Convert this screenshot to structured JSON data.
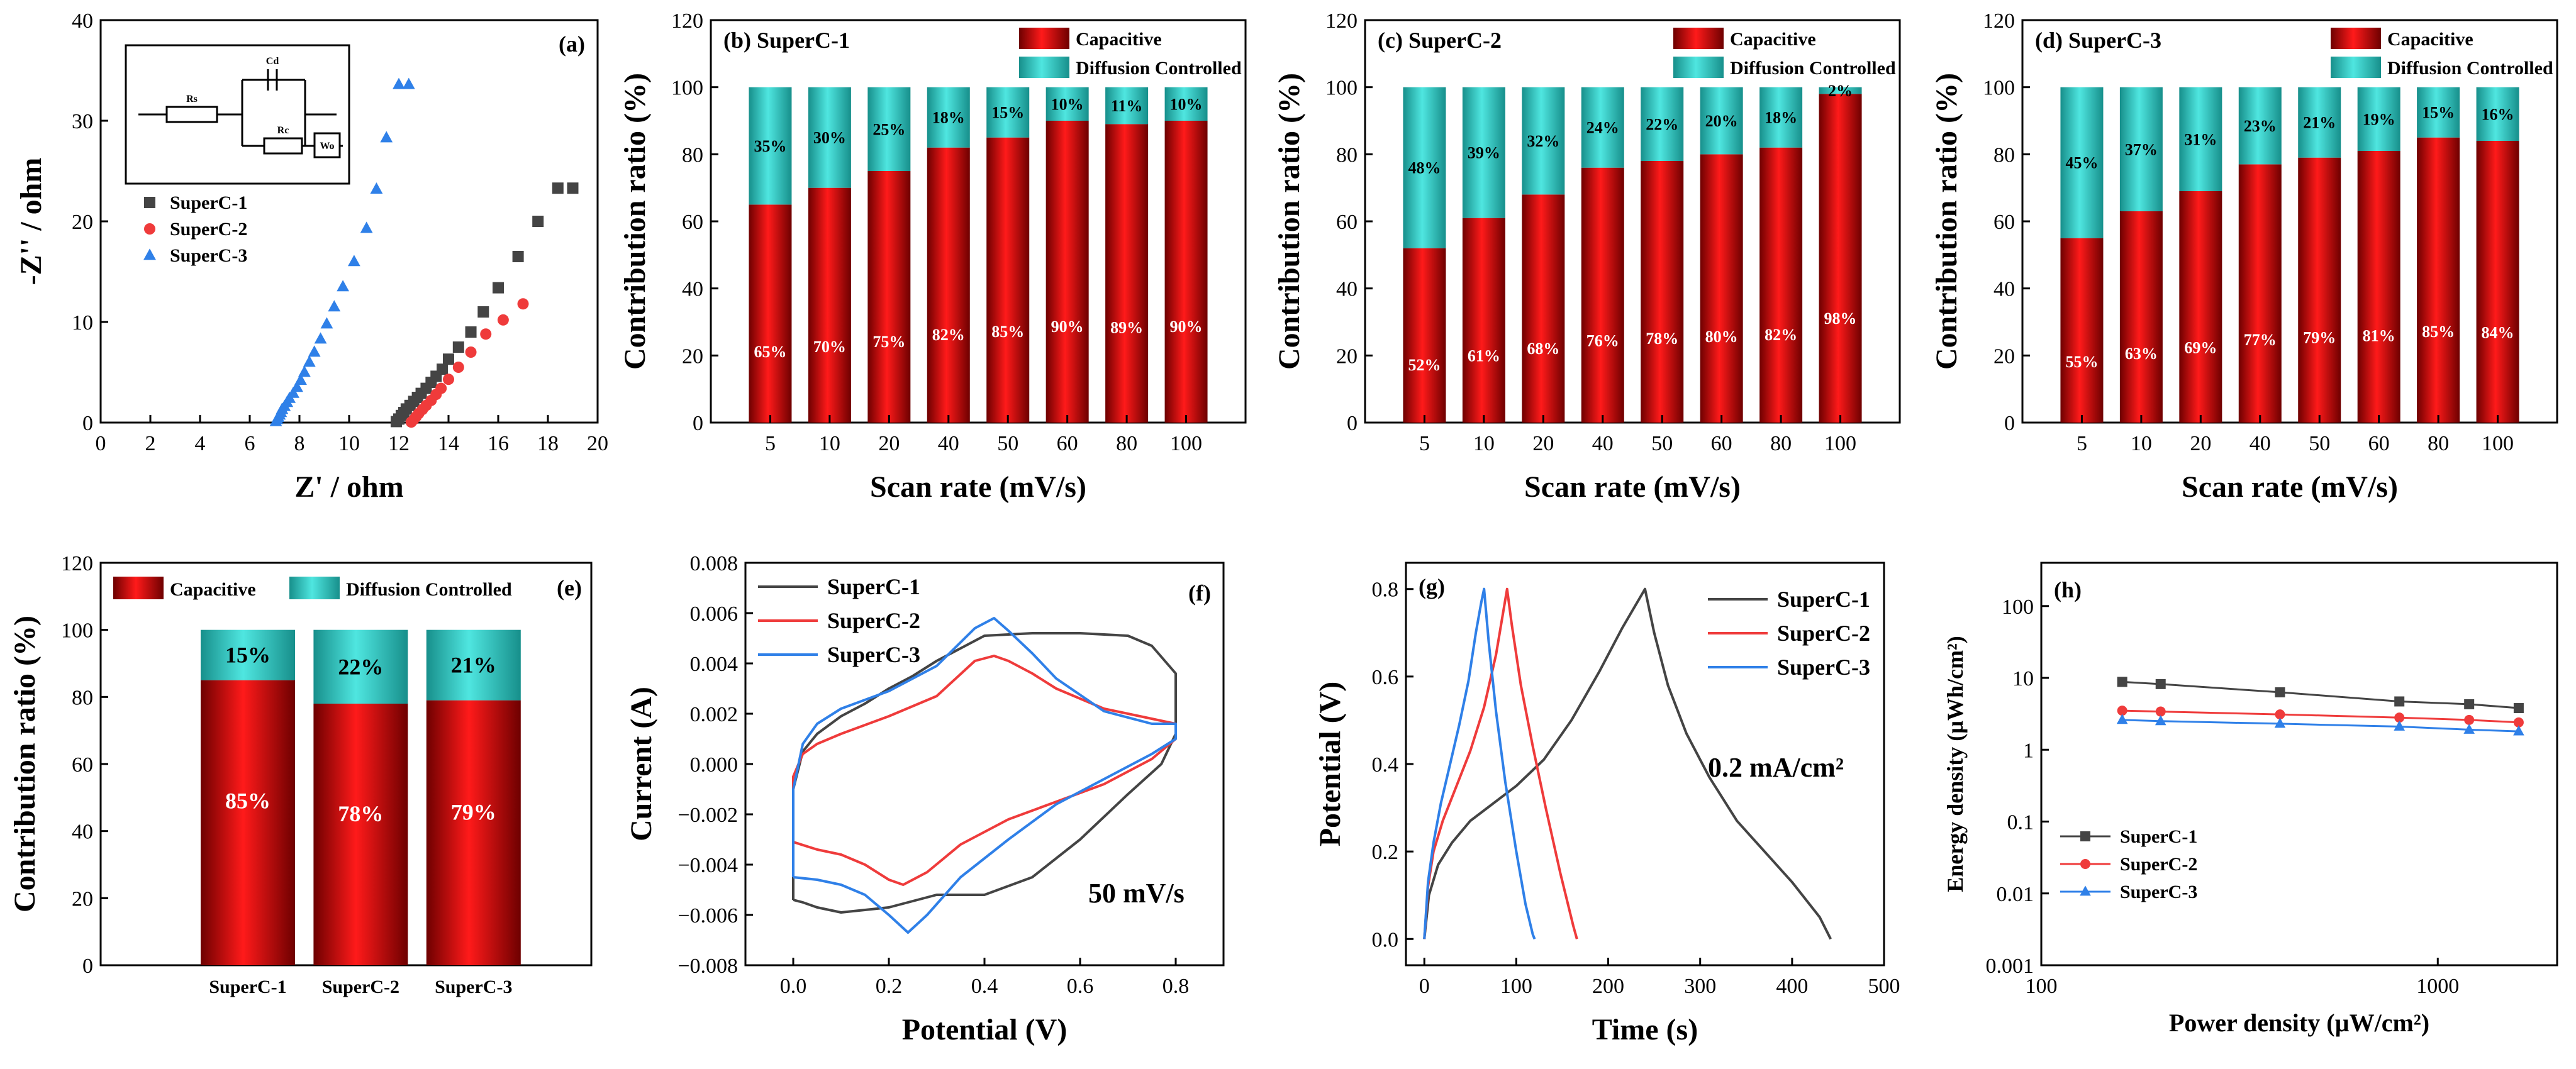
{
  "colors": {
    "capacitive": "#e31a1c",
    "capacitive_dark": "#8b0000",
    "diffusion": "#2fd4cf",
    "diffusion_dark": "#1a9e9a",
    "superc1": "#444444",
    "superc2": "#ef3b3b",
    "superc3": "#2f80e8"
  },
  "chart_data": [
    {
      "id": "a",
      "type": "scatter",
      "panel_label": "(a)",
      "xlabel": "Z' / ohm",
      "ylabel": "-Z'' / ohm",
      "xlim": [
        0,
        20
      ],
      "ylim": [
        0,
        40
      ],
      "xticks": [
        "0",
        "2",
        "4",
        "6",
        "8",
        "10",
        "12",
        "14",
        "16",
        "18",
        "20"
      ],
      "yticks": [
        "0",
        "10",
        "20",
        "30",
        "40"
      ],
      "inset_labels": [
        "Rs",
        "Cd",
        "Rc",
        "Wo"
      ],
      "series": [
        {
          "name": "SuperC-1",
          "marker": "square",
          "color_key": "superc1",
          "x": [
            11.9,
            12.0,
            12.1,
            12.2,
            12.3,
            12.45,
            12.6,
            12.75,
            12.9,
            13.1,
            13.3,
            13.5,
            13.75,
            14.0,
            14.4,
            14.9,
            15.4,
            16.0,
            16.8,
            17.6,
            18.4,
            19.0
          ],
          "y": [
            0.1,
            0.35,
            0.7,
            1.0,
            1.35,
            1.7,
            2.1,
            2.5,
            2.9,
            3.4,
            4.0,
            4.6,
            5.3,
            6.3,
            7.5,
            9.0,
            11.0,
            13.4,
            16.5,
            20.0,
            23.3,
            23.3
          ]
        },
        {
          "name": "SuperC-2",
          "marker": "circle",
          "color_key": "superc2",
          "x": [
            12.5,
            12.6,
            12.7,
            12.8,
            12.95,
            13.1,
            13.3,
            13.5,
            13.7,
            14.0,
            14.4,
            14.9,
            15.5,
            16.2,
            17.0
          ],
          "y": [
            0.05,
            0.3,
            0.6,
            0.9,
            1.3,
            1.7,
            2.2,
            2.8,
            3.4,
            4.3,
            5.5,
            7.0,
            8.8,
            10.2,
            11.8
          ]
        },
        {
          "name": "SuperC-3",
          "marker": "triangle",
          "color_key": "superc3",
          "x": [
            7.05,
            7.1,
            7.15,
            7.2,
            7.25,
            7.3,
            7.4,
            7.5,
            7.6,
            7.75,
            7.9,
            8.05,
            8.2,
            8.4,
            8.6,
            8.85,
            9.1,
            9.4,
            9.75,
            10.2,
            10.7,
            11.1,
            11.5,
            12.0,
            12.4
          ],
          "y": [
            0.1,
            0.3,
            0.5,
            0.75,
            1.0,
            1.3,
            1.6,
            2.0,
            2.4,
            2.9,
            3.5,
            4.2,
            5.0,
            6.0,
            7.0,
            8.3,
            9.8,
            11.5,
            13.5,
            16.0,
            19.3,
            23.2,
            28.3,
            33.6,
            33.6
          ]
        }
      ]
    },
    {
      "id": "b",
      "type": "bar",
      "stacked": true,
      "panel_label": "(b) SuperC-1",
      "xlabel": "Scan rate (mV/s)",
      "ylabel": "Contribution ratio (%)",
      "ylim": [
        0,
        120
      ],
      "yticks": [
        "0",
        "20",
        "40",
        "60",
        "80",
        "100",
        "120"
      ],
      "legend": [
        "Capacitive",
        "Diffusion Controlled"
      ],
      "categories": [
        "5",
        "10",
        "20",
        "40",
        "50",
        "60",
        "80",
        "100"
      ],
      "series": [
        {
          "name": "Capacitive",
          "values": [
            65,
            70,
            75,
            82,
            85,
            90,
            89,
            90
          ],
          "labels": [
            "65%",
            "70%",
            "75%",
            "82%",
            "85%",
            "90%",
            "89%",
            "90%"
          ]
        },
        {
          "name": "Diffusion Controlled",
          "values": [
            35,
            30,
            25,
            18,
            15,
            10,
            11,
            10
          ],
          "labels": [
            "35%",
            "30%",
            "25%",
            "18%",
            "15%",
            "10%",
            "11%",
            "10%"
          ]
        }
      ]
    },
    {
      "id": "c",
      "type": "bar",
      "stacked": true,
      "panel_label": "(c) SuperC-2",
      "xlabel": "Scan rate (mV/s)",
      "ylabel": "Contribution ratio (%)",
      "ylim": [
        0,
        120
      ],
      "yticks": [
        "0",
        "20",
        "40",
        "60",
        "80",
        "100",
        "120"
      ],
      "legend": [
        "Capacitive",
        "Diffusion Controlled"
      ],
      "categories": [
        "5",
        "10",
        "20",
        "40",
        "50",
        "60",
        "80",
        "100"
      ],
      "series": [
        {
          "name": "Capacitive",
          "values": [
            52,
            61,
            68,
            76,
            78,
            80,
            82,
            98
          ],
          "labels": [
            "52%",
            "61%",
            "68%",
            "76%",
            "78%",
            "80%",
            "82%",
            "98%"
          ]
        },
        {
          "name": "Diffusion Controlled",
          "values": [
            48,
            39,
            32,
            24,
            22,
            20,
            18,
            2
          ],
          "labels": [
            "48%",
            "39%",
            "32%",
            "24%",
            "22%",
            "20%",
            "18%",
            "2%"
          ]
        }
      ]
    },
    {
      "id": "d",
      "type": "bar",
      "stacked": true,
      "panel_label": "(d) SuperC-3",
      "xlabel": "Scan rate (mV/s)",
      "ylabel": "Contribution ratio (%)",
      "ylim": [
        0,
        120
      ],
      "yticks": [
        "0",
        "20",
        "40",
        "60",
        "80",
        "100",
        "120"
      ],
      "legend": [
        "Capacitive",
        "Diffusion Controlled"
      ],
      "categories": [
        "5",
        "10",
        "20",
        "40",
        "50",
        "60",
        "80",
        "100"
      ],
      "series": [
        {
          "name": "Capacitive",
          "values": [
            55,
            63,
            69,
            77,
            79,
            81,
            85,
            84
          ],
          "labels": [
            "55%",
            "63%",
            "69%",
            "77%",
            "79%",
            "81%",
            "85%",
            "84%"
          ]
        },
        {
          "name": "Diffusion Controlled",
          "values": [
            45,
            37,
            31,
            23,
            21,
            19,
            15,
            16
          ],
          "labels": [
            "45%",
            "37%",
            "31%",
            "23%",
            "21%",
            "19%",
            "15%",
            "16%"
          ]
        }
      ]
    },
    {
      "id": "e",
      "type": "bar",
      "stacked": true,
      "panel_label": "(e)",
      "xlabel": "",
      "ylabel": "Contribution ratio (%)",
      "ylim": [
        0,
        120
      ],
      "yticks": [
        "0",
        "20",
        "40",
        "60",
        "80",
        "100",
        "120"
      ],
      "legend": [
        "Capacitive",
        "Diffusion Controlled"
      ],
      "categories": [
        "SuperC-1",
        "SuperC-2",
        "SuperC-3"
      ],
      "series": [
        {
          "name": "Capacitive",
          "values": [
            85,
            78,
            79
          ],
          "labels": [
            "85%",
            "78%",
            "79%"
          ]
        },
        {
          "name": "Diffusion Controlled",
          "values": [
            15,
            22,
            21
          ],
          "labels": [
            "15%",
            "22%",
            "21%"
          ]
        }
      ]
    },
    {
      "id": "f",
      "type": "line",
      "panel_label": "(f)",
      "xlabel": "Potential (V)",
      "ylabel": "Current (A)",
      "xlim": [
        -0.1,
        0.9
      ],
      "ylim": [
        -0.008,
        0.008
      ],
      "xticks": [
        "0.0",
        "0.2",
        "0.4",
        "0.6",
        "0.8"
      ],
      "yticks": [
        "-0.008",
        "-0.006",
        "-0.004",
        "-0.002",
        "0.000",
        "0.002",
        "0.004",
        "0.006",
        "0.008"
      ],
      "annotation": "50 mV/s",
      "series": [
        {
          "name": "SuperC-1",
          "color_key": "superc1",
          "x": [
            0.0,
            0.02,
            0.05,
            0.1,
            0.2,
            0.3,
            0.4,
            0.5,
            0.6,
            0.7,
            0.77,
            0.8,
            0.8,
            0.75,
            0.7,
            0.6,
            0.5,
            0.4,
            0.3,
            0.25,
            0.2,
            0.15,
            0.1,
            0.05,
            0.02,
            0.0,
            0.0
          ],
          "y": [
            -0.0054,
            -0.0055,
            -0.0057,
            -0.0059,
            -0.0057,
            -0.0052,
            -0.0052,
            -0.0045,
            -0.003,
            -0.0012,
            0.0,
            0.0012,
            0.0036,
            0.0047,
            0.0051,
            0.0052,
            0.0052,
            0.0051,
            0.0041,
            0.0035,
            0.003,
            0.0024,
            0.0019,
            0.0012,
            0.0005,
            -0.001,
            -0.0054
          ]
        },
        {
          "name": "SuperC-2",
          "color_key": "superc2",
          "x": [
            0.0,
            0.05,
            0.1,
            0.15,
            0.2,
            0.23,
            0.28,
            0.35,
            0.45,
            0.55,
            0.65,
            0.75,
            0.8,
            0.8,
            0.75,
            0.65,
            0.55,
            0.5,
            0.45,
            0.42,
            0.38,
            0.3,
            0.2,
            0.1,
            0.05,
            0.02,
            0.0,
            0.0
          ],
          "y": [
            -0.0031,
            -0.0034,
            -0.0036,
            -0.004,
            -0.0046,
            -0.0048,
            -0.0043,
            -0.0032,
            -0.0022,
            -0.0015,
            -0.0008,
            0.0002,
            0.001,
            0.0016,
            0.0018,
            0.0022,
            0.003,
            0.0036,
            0.0041,
            0.0043,
            0.0041,
            0.0027,
            0.0019,
            0.0012,
            0.0008,
            0.0004,
            -0.0005,
            -0.0031
          ]
        },
        {
          "name": "SuperC-3",
          "color_key": "superc3",
          "x": [
            0.0,
            0.05,
            0.1,
            0.15,
            0.2,
            0.24,
            0.28,
            0.35,
            0.45,
            0.55,
            0.65,
            0.75,
            0.8,
            0.8,
            0.75,
            0.65,
            0.55,
            0.5,
            0.45,
            0.42,
            0.38,
            0.3,
            0.2,
            0.1,
            0.05,
            0.02,
            0.0,
            0.0
          ],
          "y": [
            -0.0045,
            -0.0046,
            -0.0048,
            -0.0052,
            -0.006,
            -0.0067,
            -0.006,
            -0.0045,
            -0.003,
            -0.0016,
            -0.0006,
            0.0004,
            0.001,
            0.0016,
            0.0016,
            0.0021,
            0.0034,
            0.0044,
            0.0053,
            0.0058,
            0.0054,
            0.0039,
            0.0029,
            0.0022,
            0.0016,
            0.0008,
            -0.001,
            -0.0045
          ]
        }
      ]
    },
    {
      "id": "g",
      "type": "line",
      "panel_label": "(g)",
      "xlabel": "Time (s)",
      "ylabel": "Potential (V)",
      "xlim": [
        -20,
        500
      ],
      "ylim": [
        -0.06,
        0.86
      ],
      "xticks": [
        "0",
        "100",
        "200",
        "300",
        "400",
        "500"
      ],
      "yticks": [
        "0.0",
        "0.2",
        "0.4",
        "0.6",
        "0.8"
      ],
      "annotation": "0.2 mA/cm²",
      "series": [
        {
          "name": "SuperC-1",
          "color_key": "superc1",
          "x": [
            0,
            5,
            15,
            30,
            50,
            75,
            100,
            130,
            160,
            190,
            215,
            240,
            250,
            265,
            285,
            310,
            340,
            370,
            400,
            430,
            442
          ],
          "y": [
            0.0,
            0.1,
            0.17,
            0.22,
            0.27,
            0.31,
            0.35,
            0.41,
            0.5,
            0.61,
            0.71,
            0.8,
            0.7,
            0.58,
            0.47,
            0.37,
            0.27,
            0.2,
            0.13,
            0.05,
            0.0
          ]
        },
        {
          "name": "SuperC-2",
          "color_key": "superc2",
          "x": [
            0,
            4,
            10,
            20,
            35,
            50,
            65,
            78,
            86,
            90,
            95,
            105,
            118,
            132,
            148,
            162,
            166
          ],
          "y": [
            0.0,
            0.12,
            0.2,
            0.27,
            0.35,
            0.43,
            0.53,
            0.65,
            0.75,
            0.8,
            0.72,
            0.58,
            0.44,
            0.3,
            0.15,
            0.03,
            0.0
          ]
        },
        {
          "name": "SuperC-3",
          "color_key": "superc3",
          "x": [
            0,
            4,
            10,
            18,
            28,
            38,
            48,
            56,
            62,
            65,
            70,
            78,
            88,
            100,
            110,
            118,
            120
          ],
          "y": [
            0.0,
            0.13,
            0.22,
            0.31,
            0.4,
            0.49,
            0.59,
            0.7,
            0.77,
            0.8,
            0.68,
            0.52,
            0.36,
            0.2,
            0.08,
            0.01,
            0.0
          ]
        }
      ]
    },
    {
      "id": "h",
      "type": "line",
      "log_x": true,
      "log_y": true,
      "panel_label": "(h)",
      "xlabel": "Power density (µW/cm²)",
      "ylabel": "Energy density (µWh/cm²)",
      "xlim": [
        100,
        2000
      ],
      "ylim": [
        0.001,
        400
      ],
      "xticks": [
        "100",
        "1000"
      ],
      "yticks": [
        "0.001",
        "0.01",
        "0.1",
        "1",
        "10",
        "100"
      ],
      "series": [
        {
          "name": "SuperC-1",
          "marker": "square",
          "color_key": "superc1",
          "x": [
            160,
            200,
            400,
            800,
            1200,
            1600
          ],
          "y": [
            8.8,
            8.2,
            6.3,
            4.7,
            4.3,
            3.8
          ]
        },
        {
          "name": "SuperC-2",
          "marker": "circle",
          "color_key": "superc2",
          "x": [
            160,
            200,
            400,
            800,
            1200,
            1600
          ],
          "y": [
            3.5,
            3.4,
            3.1,
            2.8,
            2.6,
            2.4
          ]
        },
        {
          "name": "SuperC-3",
          "marker": "triangle",
          "color_key": "superc3",
          "x": [
            160,
            200,
            400,
            800,
            1200,
            1600
          ],
          "y": [
            2.6,
            2.5,
            2.3,
            2.1,
            1.9,
            1.8
          ]
        }
      ]
    }
  ]
}
